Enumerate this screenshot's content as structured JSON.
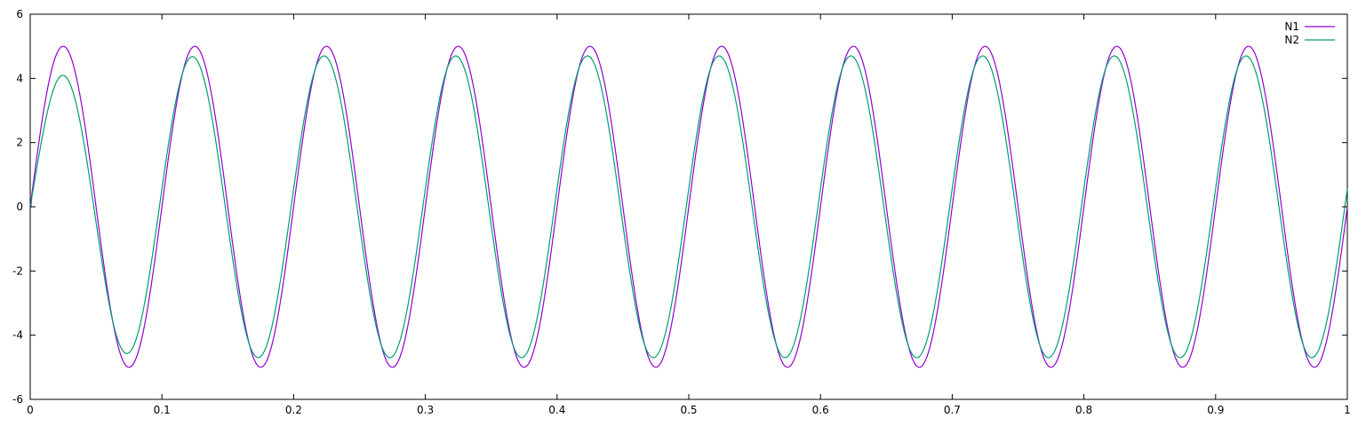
{
  "chart_data": {
    "type": "line",
    "title": "",
    "xlabel": "",
    "ylabel": "",
    "xlim": [
      0,
      1
    ],
    "ylim": [
      -6,
      6
    ],
    "x_ticks": [
      "0",
      "0.1",
      "0.2",
      "0.3",
      "0.4",
      "0.5",
      "0.6",
      "0.7",
      "0.8",
      "0.9",
      "1"
    ],
    "y_ticks": [
      "6",
      "4",
      "2",
      "0",
      "-2",
      "-4",
      "-6"
    ],
    "grid": false,
    "legend_position": "top-right",
    "series": [
      {
        "name": "N1",
        "color": "#9400d3",
        "function": "5*sin(2*pi*10*x)",
        "amplitude": 5,
        "frequency": 10,
        "peaks": [
          5,
          5,
          5,
          5,
          5,
          5,
          5,
          5,
          5,
          5
        ],
        "troughs": [
          -5,
          -5,
          -5,
          -5,
          -5,
          -5,
          -5,
          -5,
          -5,
          -5
        ]
      },
      {
        "name": "N2",
        "color": "#009e73",
        "description": "damped oscillator response approaching steady state",
        "peaks": [
          3.78,
          4.6,
          4.7,
          4.7,
          4.7,
          4.7,
          4.7,
          4.7,
          4.7,
          4.7
        ],
        "troughs": [
          -5.05,
          -4.75,
          -4.7,
          -4.7,
          -4.7,
          -4.7,
          -4.7,
          -4.7,
          -4.7,
          -4.7
        ],
        "end_value": 1.15
      }
    ]
  }
}
